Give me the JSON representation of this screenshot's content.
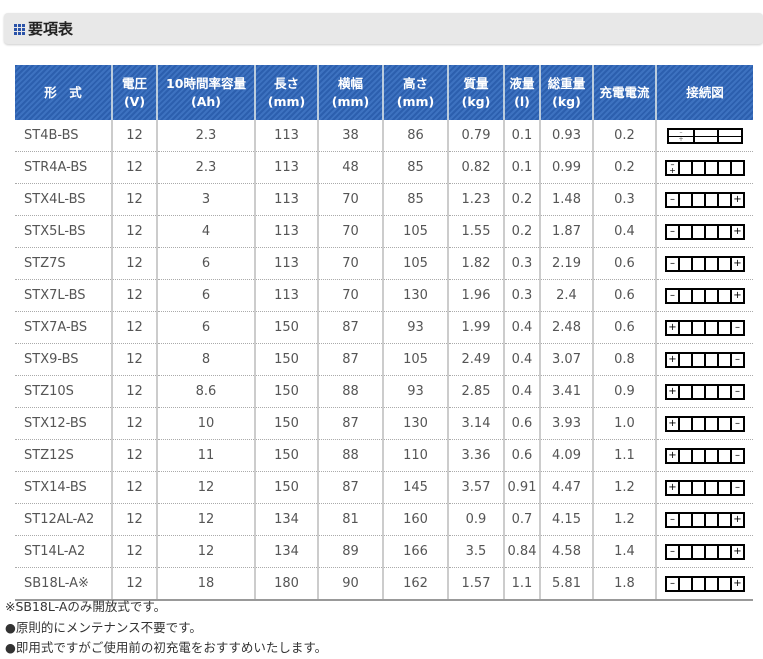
{
  "title": "要項表",
  "headers": [
    [
      "形　式",
      ""
    ],
    [
      "電圧",
      "(V)"
    ],
    [
      "10時間率容量",
      "(Ah)"
    ],
    [
      "長さ",
      "(mm)"
    ],
    [
      "横幅",
      "(mm)"
    ],
    [
      "高さ",
      "(mm)"
    ],
    [
      "質量",
      "(kg)"
    ],
    [
      "液量",
      "(l)"
    ],
    [
      "総重量",
      "(kg)"
    ],
    [
      "充電電流",
      ""
    ],
    [
      "接続図",
      ""
    ]
  ],
  "rows": [
    [
      "ST4B-BS",
      "12",
      "2.3",
      "113",
      "38",
      "86",
      "0.79",
      "0.1",
      "0.93",
      "0.2",
      "special3"
    ],
    [
      "STR4A-BS",
      "12",
      "2.3",
      "113",
      "48",
      "85",
      "0.82",
      "0.1",
      "0.99",
      "0.2",
      "stacked"
    ],
    [
      "STX4L-BS",
      "12",
      "3",
      "113",
      "70",
      "85",
      "1.23",
      "0.2",
      "1.48",
      "0.3",
      "-+"
    ],
    [
      "STX5L-BS",
      "12",
      "4",
      "113",
      "70",
      "105",
      "1.55",
      "0.2",
      "1.87",
      "0.4",
      "-+"
    ],
    [
      "STZ7S",
      "12",
      "6",
      "113",
      "70",
      "105",
      "1.82",
      "0.3",
      "2.19",
      "0.6",
      "-+"
    ],
    [
      "STX7L-BS",
      "12",
      "6",
      "113",
      "70",
      "130",
      "1.96",
      "0.3",
      "2.4",
      "0.6",
      "-+"
    ],
    [
      "STX7A-BS",
      "12",
      "6",
      "150",
      "87",
      "93",
      "1.99",
      "0.4",
      "2.48",
      "0.6",
      "+-"
    ],
    [
      "STX9-BS",
      "12",
      "8",
      "150",
      "87",
      "105",
      "2.49",
      "0.4",
      "3.07",
      "0.8",
      "+-"
    ],
    [
      "STZ10S",
      "12",
      "8.6",
      "150",
      "88",
      "93",
      "2.85",
      "0.4",
      "3.41",
      "0.9",
      "+-"
    ],
    [
      "STX12-BS",
      "12",
      "10",
      "150",
      "87",
      "130",
      "3.14",
      "0.6",
      "3.93",
      "1.0",
      "+-"
    ],
    [
      "STZ12S",
      "12",
      "11",
      "150",
      "88",
      "110",
      "3.36",
      "0.6",
      "4.09",
      "1.1",
      "+-"
    ],
    [
      "STX14-BS",
      "12",
      "12",
      "150",
      "87",
      "145",
      "3.57",
      "0.91",
      "4.47",
      "1.2",
      "+-"
    ],
    [
      "ST12AL-A2",
      "12",
      "12",
      "134",
      "81",
      "160",
      "0.9",
      "0.7",
      "4.15",
      "1.2",
      "-+"
    ],
    [
      "ST14L-A2",
      "12",
      "12",
      "134",
      "89",
      "166",
      "3.5",
      "0.84",
      "4.58",
      "1.4",
      "-+"
    ],
    [
      "SB18L-A※",
      "12",
      "18",
      "180",
      "90",
      "162",
      "1.57",
      "1.1",
      "5.81",
      "1.8",
      "-+"
    ]
  ],
  "notes": [
    "※SB18L-Aのみ開放式です。",
    "●原則的にメンテナンス不要です。",
    "●即用式ですがご使用前の初充電をおすすめいたします。"
  ],
  "colors": {
    "header": "#3366b3"
  }
}
